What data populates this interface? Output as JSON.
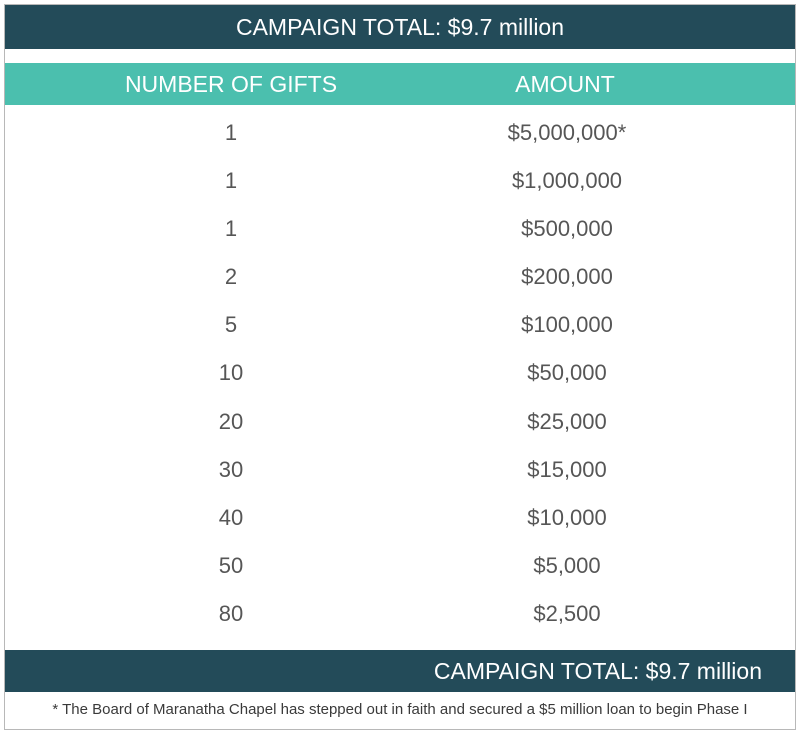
{
  "header": {
    "title": "CAMPAIGN TOTAL: $9.7 million"
  },
  "table": {
    "columns": [
      "NUMBER OF GIFTS",
      "AMOUNT"
    ],
    "rows": [
      {
        "gifts": "1",
        "amount": "$5,000,000*"
      },
      {
        "gifts": "1",
        "amount": "$1,000,000"
      },
      {
        "gifts": "1",
        "amount": "$500,000"
      },
      {
        "gifts": "2",
        "amount": "$200,000"
      },
      {
        "gifts": "5",
        "amount": "$100,000"
      },
      {
        "gifts": "10",
        "amount": "$50,000"
      },
      {
        "gifts": "20",
        "amount": "$25,000"
      },
      {
        "gifts": "30",
        "amount": "$15,000"
      },
      {
        "gifts": "40",
        "amount": "$10,000"
      },
      {
        "gifts": "50",
        "amount": "$5,000"
      },
      {
        "gifts": "80",
        "amount": "$2,500"
      }
    ]
  },
  "footer": {
    "total": "CAMPAIGN TOTAL: $9.7 million",
    "note": "* The Board of Maranatha Chapel has stepped out in faith and secured a $5 million loan to begin Phase I"
  },
  "colors": {
    "dark_teal": "#234b59",
    "header_teal": "#4bbfae",
    "text_gray": "#565656"
  }
}
